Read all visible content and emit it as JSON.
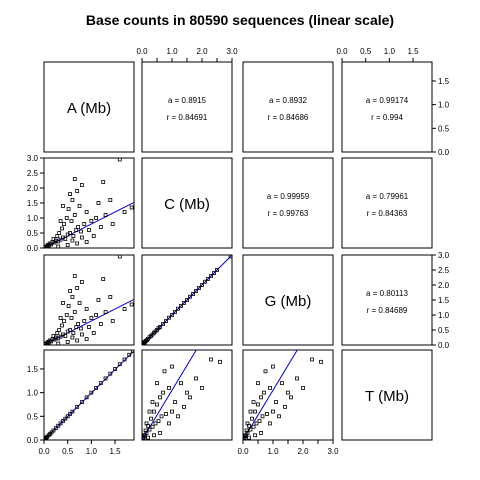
{
  "chart_data": {
    "type": "scatter",
    "title": "Base counts in 80590 sequences (linear scale)",
    "layout": "pairs-matrix",
    "variables": [
      {
        "key": "A",
        "label": "A (Mb)",
        "lim": [
          0,
          1.9
        ],
        "ticks": [
          0.0,
          0.5,
          1.0,
          1.5
        ],
        "tick_labels": [
          "0.0",
          "0.5",
          "1.0",
          "1.5"
        ]
      },
      {
        "key": "C",
        "label": "C (Mb)",
        "lim": [
          0,
          3.0
        ],
        "ticks": [
          0.0,
          0.5,
          1.0,
          1.5,
          2.0,
          2.5,
          3.0
        ],
        "tick_labels": [
          "0.0",
          "0.5",
          "1.0",
          "1.5",
          "2.0",
          "2.5",
          "3.0"
        ],
        "major_tick_labels": [
          "0.0",
          "1.0",
          "2.0",
          "3.0"
        ]
      },
      {
        "key": "G",
        "label": "G (Mb)",
        "lim": [
          0,
          3.0
        ],
        "ticks": [
          0.0,
          0.5,
          1.0,
          1.5,
          2.0,
          2.5,
          3.0
        ],
        "tick_labels": [
          "0.0",
          "0.5",
          "1.0",
          "1.5",
          "2.0",
          "2.5",
          "3.0"
        ],
        "major_tick_labels": [
          "0.0",
          "1.0",
          "2.0",
          "3.0"
        ]
      },
      {
        "key": "T",
        "label": "T (Mb)",
        "lim": [
          0,
          1.9
        ],
        "ticks": [
          0.0,
          0.5,
          1.0,
          1.5
        ],
        "tick_labels": [
          "0.0",
          "0.5",
          "1.0",
          "1.5"
        ]
      }
    ],
    "correlations": [
      {
        "row": 0,
        "col": 1,
        "a_text": "a = 0.8915",
        "r_text": "r = 0.84691"
      },
      {
        "row": 0,
        "col": 2,
        "a_text": "a = 0.8932",
        "r_text": "r = 0.84686"
      },
      {
        "row": 0,
        "col": 3,
        "a_text": "a = 0.99174",
        "r_text": "r = 0.994"
      },
      {
        "row": 1,
        "col": 2,
        "a_text": "a = 0.99959",
        "r_text": "r = 0.99763"
      },
      {
        "row": 1,
        "col": 3,
        "a_text": "a = 0.79961",
        "r_text": "r = 0.84363"
      },
      {
        "row": 2,
        "col": 3,
        "a_text": "a = 0.80113",
        "r_text": "r = 0.84689"
      }
    ],
    "scatter_panels": [
      {
        "row": 1,
        "col": 0,
        "x": "A",
        "y": "C",
        "fit_slope": 0.8,
        "points": [
          [
            0.02,
            0.03
          ],
          [
            0.04,
            0.05
          ],
          [
            0.06,
            0.04
          ],
          [
            0.08,
            0.1
          ],
          [
            0.1,
            0.08
          ],
          [
            0.12,
            0.15
          ],
          [
            0.15,
            0.12
          ],
          [
            0.18,
            0.2
          ],
          [
            0.2,
            0.3
          ],
          [
            0.22,
            0.18
          ],
          [
            0.25,
            0.25
          ],
          [
            0.28,
            0.4
          ],
          [
            0.3,
            0.22
          ],
          [
            0.32,
            0.5
          ],
          [
            0.35,
            0.28
          ],
          [
            0.38,
            0.65
          ],
          [
            0.4,
            0.35
          ],
          [
            0.42,
            0.8
          ],
          [
            0.45,
            0.3
          ],
          [
            0.48,
            1.0
          ],
          [
            0.5,
            0.45
          ],
          [
            0.52,
            1.3
          ],
          [
            0.55,
            0.5
          ],
          [
            0.58,
            0.9
          ],
          [
            0.6,
            1.6
          ],
          [
            0.62,
            0.4
          ],
          [
            0.65,
            1.1
          ],
          [
            0.68,
            0.6
          ],
          [
            0.7,
            1.9
          ],
          [
            0.72,
            0.7
          ],
          [
            0.75,
            1.4
          ],
          [
            0.78,
            0.55
          ],
          [
            0.8,
            2.1
          ],
          [
            0.85,
            0.8
          ],
          [
            0.9,
            1.2
          ],
          [
            0.95,
            0.6
          ],
          [
            1.0,
            0.9
          ],
          [
            1.05,
            0.4
          ],
          [
            1.1,
            1.0
          ],
          [
            1.15,
            1.5
          ],
          [
            1.2,
            0.7
          ],
          [
            1.3,
            1.1
          ],
          [
            1.45,
            0.8
          ],
          [
            1.6,
            2.95
          ],
          [
            1.7,
            1.2
          ],
          [
            1.85,
            1.35
          ],
          [
            0.3,
            0.05
          ],
          [
            0.5,
            0.1
          ],
          [
            0.7,
            0.15
          ],
          [
            0.9,
            0.2
          ],
          [
            0.4,
            1.4
          ],
          [
            0.55,
            1.8
          ],
          [
            0.65,
            2.3
          ],
          [
            0.35,
            0.9
          ],
          [
            1.25,
            2.2
          ],
          [
            1.4,
            1.6
          ],
          [
            0.6,
            0.25
          ],
          [
            0.8,
            0.35
          ]
        ]
      },
      {
        "row": 2,
        "col": 0,
        "x": "A",
        "y": "G",
        "fit_slope": 0.8,
        "points": [
          [
            0.02,
            0.03
          ],
          [
            0.04,
            0.05
          ],
          [
            0.06,
            0.04
          ],
          [
            0.08,
            0.1
          ],
          [
            0.1,
            0.08
          ],
          [
            0.12,
            0.15
          ],
          [
            0.15,
            0.12
          ],
          [
            0.18,
            0.2
          ],
          [
            0.2,
            0.3
          ],
          [
            0.22,
            0.18
          ],
          [
            0.25,
            0.25
          ],
          [
            0.28,
            0.4
          ],
          [
            0.3,
            0.22
          ],
          [
            0.32,
            0.5
          ],
          [
            0.35,
            0.28
          ],
          [
            0.38,
            0.65
          ],
          [
            0.4,
            0.35
          ],
          [
            0.42,
            0.8
          ],
          [
            0.45,
            0.3
          ],
          [
            0.48,
            1.0
          ],
          [
            0.5,
            0.45
          ],
          [
            0.52,
            1.3
          ],
          [
            0.55,
            0.5
          ],
          [
            0.58,
            0.9
          ],
          [
            0.6,
            1.6
          ],
          [
            0.62,
            0.4
          ],
          [
            0.65,
            1.1
          ],
          [
            0.68,
            0.6
          ],
          [
            0.7,
            1.9
          ],
          [
            0.72,
            0.7
          ],
          [
            0.75,
            1.4
          ],
          [
            0.78,
            0.55
          ],
          [
            0.8,
            2.1
          ],
          [
            0.85,
            0.8
          ],
          [
            0.9,
            1.2
          ],
          [
            0.95,
            0.6
          ],
          [
            1.0,
            0.9
          ],
          [
            1.05,
            0.4
          ],
          [
            1.1,
            1.0
          ],
          [
            1.15,
            1.5
          ],
          [
            1.2,
            0.7
          ],
          [
            1.3,
            1.1
          ],
          [
            1.45,
            0.8
          ],
          [
            1.6,
            2.95
          ],
          [
            1.7,
            1.2
          ],
          [
            1.85,
            1.35
          ],
          [
            0.3,
            0.05
          ],
          [
            0.5,
            0.1
          ],
          [
            0.7,
            0.15
          ],
          [
            0.9,
            0.2
          ],
          [
            0.4,
            1.4
          ],
          [
            0.55,
            1.8
          ],
          [
            0.65,
            2.3
          ],
          [
            0.35,
            0.9
          ],
          [
            1.25,
            2.2
          ],
          [
            1.4,
            1.6
          ],
          [
            0.6,
            0.25
          ],
          [
            0.8,
            0.35
          ]
        ]
      },
      {
        "row": 2,
        "col": 1,
        "x": "C",
        "y": "G",
        "fit_slope": 1.0,
        "points": [
          [
            0.02,
            0.02
          ],
          [
            0.05,
            0.05
          ],
          [
            0.08,
            0.08
          ],
          [
            0.1,
            0.11
          ],
          [
            0.13,
            0.13
          ],
          [
            0.16,
            0.16
          ],
          [
            0.2,
            0.2
          ],
          [
            0.25,
            0.26
          ],
          [
            0.3,
            0.3
          ],
          [
            0.35,
            0.35
          ],
          [
            0.4,
            0.41
          ],
          [
            0.45,
            0.45
          ],
          [
            0.5,
            0.5
          ],
          [
            0.55,
            0.56
          ],
          [
            0.6,
            0.6
          ],
          [
            0.7,
            0.7
          ],
          [
            0.8,
            0.8
          ],
          [
            0.9,
            0.91
          ],
          [
            1.0,
            1.0
          ],
          [
            1.1,
            1.1
          ],
          [
            1.2,
            1.21
          ],
          [
            1.3,
            1.3
          ],
          [
            1.4,
            1.4
          ],
          [
            1.5,
            1.5
          ],
          [
            1.6,
            1.61
          ],
          [
            1.7,
            1.7
          ],
          [
            1.8,
            1.8
          ],
          [
            1.9,
            1.9
          ],
          [
            2.0,
            2.0
          ],
          [
            2.1,
            2.11
          ],
          [
            2.2,
            2.2
          ],
          [
            2.3,
            2.3
          ],
          [
            2.4,
            2.4
          ],
          [
            2.5,
            2.5
          ],
          [
            2.95,
            2.95
          ]
        ]
      },
      {
        "row": 3,
        "col": 0,
        "x": "A",
        "y": "T",
        "fit_slope": 0.99,
        "points": [
          [
            0.01,
            0.01
          ],
          [
            0.03,
            0.03
          ],
          [
            0.05,
            0.05
          ],
          [
            0.07,
            0.07
          ],
          [
            0.1,
            0.1
          ],
          [
            0.13,
            0.13
          ],
          [
            0.16,
            0.16
          ],
          [
            0.2,
            0.2
          ],
          [
            0.25,
            0.25
          ],
          [
            0.3,
            0.3
          ],
          [
            0.35,
            0.35
          ],
          [
            0.4,
            0.4
          ],
          [
            0.45,
            0.45
          ],
          [
            0.5,
            0.5
          ],
          [
            0.55,
            0.55
          ],
          [
            0.6,
            0.6
          ],
          [
            0.7,
            0.7
          ],
          [
            0.8,
            0.8
          ],
          [
            0.9,
            0.9
          ],
          [
            1.0,
            1.0
          ],
          [
            1.1,
            1.1
          ],
          [
            1.2,
            1.2
          ],
          [
            1.3,
            1.3
          ],
          [
            1.4,
            1.4
          ],
          [
            1.5,
            1.5
          ],
          [
            1.6,
            1.6
          ],
          [
            1.7,
            1.7
          ],
          [
            1.8,
            1.8
          ],
          [
            1.88,
            1.88
          ]
        ]
      },
      {
        "row": 3,
        "col": 1,
        "x": "C",
        "y": "T",
        "fit_slope": 1.05,
        "points": [
          [
            0.03,
            0.02
          ],
          [
            0.05,
            0.05
          ],
          [
            0.08,
            0.1
          ],
          [
            0.1,
            0.08
          ],
          [
            0.12,
            0.2
          ],
          [
            0.15,
            0.15
          ],
          [
            0.2,
            0.3
          ],
          [
            0.25,
            0.22
          ],
          [
            0.3,
            0.45
          ],
          [
            0.35,
            0.28
          ],
          [
            0.4,
            0.6
          ],
          [
            0.45,
            0.35
          ],
          [
            0.5,
            0.75
          ],
          [
            0.55,
            0.4
          ],
          [
            0.6,
            0.9
          ],
          [
            0.65,
            0.5
          ],
          [
            0.7,
            1.0
          ],
          [
            0.8,
            0.55
          ],
          [
            0.9,
            1.1
          ],
          [
            1.0,
            0.6
          ],
          [
            1.1,
            0.8
          ],
          [
            1.2,
            0.5
          ],
          [
            1.3,
            1.2
          ],
          [
            1.4,
            0.7
          ],
          [
            1.6,
            0.9
          ],
          [
            1.8,
            1.3
          ],
          [
            2.0,
            1.1
          ],
          [
            2.3,
            1.7
          ],
          [
            2.6,
            1.65
          ],
          [
            0.2,
            0.05
          ],
          [
            0.4,
            0.1
          ],
          [
            0.6,
            0.15
          ],
          [
            0.15,
            0.35
          ],
          [
            0.35,
            0.8
          ],
          [
            0.5,
            1.2
          ],
          [
            0.75,
            1.45
          ],
          [
            1.0,
            1.55
          ],
          [
            0.9,
            0.35
          ],
          [
            1.5,
            1.0
          ],
          [
            0.25,
            0.6
          ]
        ]
      },
      {
        "row": 3,
        "col": 2,
        "x": "G",
        "y": "T",
        "fit_slope": 1.05,
        "points": [
          [
            0.03,
            0.02
          ],
          [
            0.05,
            0.05
          ],
          [
            0.08,
            0.1
          ],
          [
            0.1,
            0.08
          ],
          [
            0.12,
            0.2
          ],
          [
            0.15,
            0.15
          ],
          [
            0.2,
            0.3
          ],
          [
            0.25,
            0.22
          ],
          [
            0.3,
            0.45
          ],
          [
            0.35,
            0.28
          ],
          [
            0.4,
            0.6
          ],
          [
            0.45,
            0.35
          ],
          [
            0.5,
            0.75
          ],
          [
            0.55,
            0.4
          ],
          [
            0.6,
            0.9
          ],
          [
            0.65,
            0.5
          ],
          [
            0.7,
            1.0
          ],
          [
            0.8,
            0.55
          ],
          [
            0.9,
            1.1
          ],
          [
            1.0,
            0.6
          ],
          [
            1.1,
            0.8
          ],
          [
            1.2,
            0.5
          ],
          [
            1.3,
            1.2
          ],
          [
            1.4,
            0.7
          ],
          [
            1.6,
            0.9
          ],
          [
            1.8,
            1.3
          ],
          [
            2.0,
            1.1
          ],
          [
            2.3,
            1.7
          ],
          [
            2.6,
            1.65
          ],
          [
            0.2,
            0.05
          ],
          [
            0.4,
            0.1
          ],
          [
            0.6,
            0.15
          ],
          [
            0.15,
            0.35
          ],
          [
            0.35,
            0.8
          ],
          [
            0.5,
            1.2
          ],
          [
            0.75,
            1.45
          ],
          [
            1.0,
            1.55
          ],
          [
            0.9,
            0.35
          ],
          [
            1.5,
            1.0
          ],
          [
            0.25,
            0.6
          ]
        ]
      }
    ],
    "colors": {
      "points": "#000000",
      "fit_line": "#0000cc",
      "panel_border": "#000000"
    },
    "grid": false
  }
}
